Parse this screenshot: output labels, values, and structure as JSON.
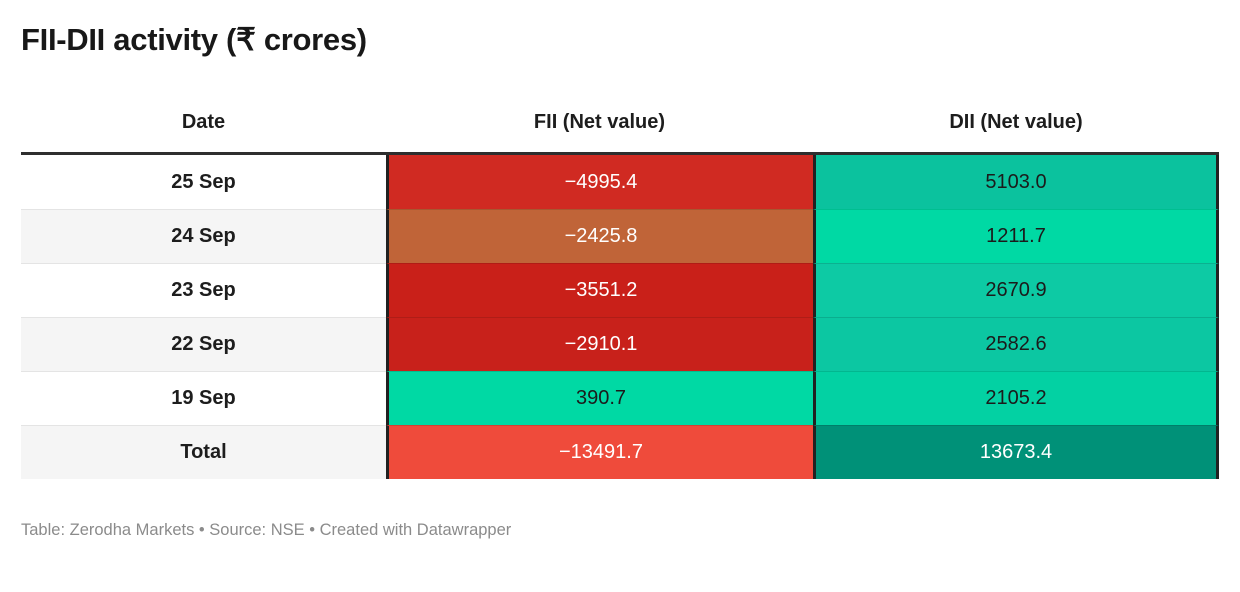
{
  "title": "FII-DII activity (₹ crores)",
  "footer": "Table: Zerodha Markets • Source: NSE • Created with Datawrapper",
  "colors": {
    "header_border": "#2e2e2e",
    "column_border": "#212121",
    "negative_strong": "#c92019",
    "negative_total": "#ef4b3b",
    "positive_bright": "#00d9a4",
    "positive_total": "#009178"
  },
  "table": {
    "columns": [
      "Date",
      "FII (Net value)",
      "DII (Net value)"
    ],
    "rows": [
      {
        "date": "25 Sep",
        "fii": "−4995.4",
        "dii": "5103.0",
        "date_bg": "#ffffff",
        "fii_bg": "#d02a22",
        "fii_fg": "#ffffff",
        "dii_bg": "#0bc29e",
        "dii_fg": "#1b1b1b"
      },
      {
        "date": "24 Sep",
        "fii": "−2425.8",
        "dii": "1211.7",
        "date_bg": "#f5f5f5",
        "fii_bg": "#c06438",
        "fii_fg": "#ffffff",
        "dii_bg": "#00d9a4",
        "dii_fg": "#1b1b1b"
      },
      {
        "date": "23 Sep",
        "fii": "−3551.2",
        "dii": "2670.9",
        "date_bg": "#ffffff",
        "fii_bg": "#c92019",
        "fii_fg": "#ffffff",
        "dii_bg": "#0dcaa4",
        "dii_fg": "#1b1b1b"
      },
      {
        "date": "22 Sep",
        "fii": "−2910.1",
        "dii": "2582.6",
        "date_bg": "#f5f5f5",
        "fii_bg": "#c8211b",
        "fii_fg": "#ffffff",
        "dii_bg": "#0cc7a2",
        "dii_fg": "#1b1b1b"
      },
      {
        "date": "19 Sep",
        "fii": "390.7",
        "dii": "2105.2",
        "date_bg": "#ffffff",
        "fii_bg": "#00d9a4",
        "fii_fg": "#1b1b1b",
        "dii_bg": "#03d1a3",
        "dii_fg": "#1b1b1b"
      },
      {
        "date": "Total",
        "fii": "−13491.7",
        "dii": "13673.4",
        "date_bg": "#f5f5f5",
        "fii_bg": "#ef4b3b",
        "fii_fg": "#ffffff",
        "dii_bg": "#009178",
        "dii_fg": "#ffffff"
      }
    ]
  },
  "chart_data": {
    "type": "table",
    "title": "FII-DII activity (₹ crores)",
    "columns": [
      "Date",
      "FII (Net value)",
      "DII (Net value)"
    ],
    "rows": [
      [
        "25 Sep",
        -4995.4,
        5103.0
      ],
      [
        "24 Sep",
        -2425.8,
        1211.7
      ],
      [
        "23 Sep",
        -3551.2,
        2670.9
      ],
      [
        "22 Sep",
        -2910.1,
        2582.6
      ],
      [
        "19 Sep",
        390.7,
        2105.2
      ],
      [
        "Total",
        -13491.7,
        13673.4
      ]
    ],
    "notes": "Table: Zerodha Markets • Source: NSE • Created with Datawrapper",
    "layout_hints": "heatmap-colored value cells: red scale for negative FII flows, green/teal scale for positive DII flows; darker shade = larger magnitude"
  }
}
